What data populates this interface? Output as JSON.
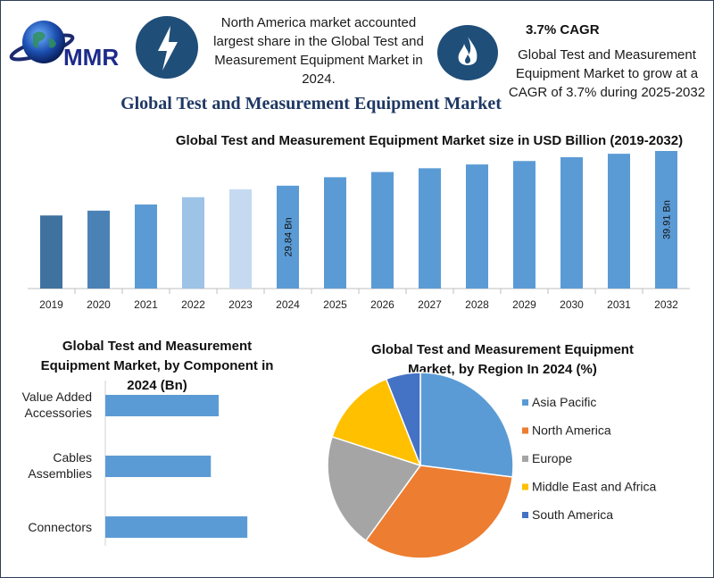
{
  "header": {
    "logo_text": "MMR",
    "info_left": "North America market accounted largest share in the Global Test and Measurement Equipment Market in 2024.",
    "info_right_heading": "3.7% CAGR",
    "info_right_text": "Global Test and Measurement Equipment Market to grow at a CAGR of 3.7% during 2025-2032",
    "title": "Global Test and Measurement Equipment Market"
  },
  "icons": {
    "left": "lightning-bolt-icon",
    "right": "flame-icon",
    "badge_color": "#1f4e79"
  },
  "chart_data": [
    {
      "type": "bar",
      "title": "Global Test and Measurement Equipment Market size in USD Billion (2019-2032)",
      "categories": [
        "2019",
        "2020",
        "2021",
        "2022",
        "2023",
        "2024",
        "2025",
        "2026",
        "2027",
        "2028",
        "2029",
        "2030",
        "2031",
        "2032"
      ],
      "values": [
        21.2,
        22.6,
        24.4,
        26.5,
        28.8,
        29.84,
        32.3,
        33.8,
        34.9,
        36.0,
        37.0,
        38.1,
        39.1,
        39.91
      ],
      "colors": [
        "#40729f",
        "#4a82b6",
        "#5b9bd5",
        "#9dc3e6",
        "#c5d9f1",
        "#5b9bd5",
        "#5b9bd5",
        "#5b9bd5",
        "#5b9bd5",
        "#5b9bd5",
        "#5b9bd5",
        "#5b9bd5",
        "#5b9bd5",
        "#5b9bd5"
      ],
      "data_labels": {
        "2024": "29.84 Bn",
        "2032": "39.91 Bn"
      }
    },
    {
      "type": "bar",
      "orientation": "horizontal",
      "title": "Global Test and Measurement Equipment Market, by Component in 2024 (Bn)",
      "categories": [
        "Value Added Accessories",
        "Cables Assemblies",
        "Connectors"
      ],
      "values": [
        8.7,
        8.1,
        10.9
      ],
      "color": "#5b9bd5"
    },
    {
      "type": "pie",
      "title": "Global Test and Measurement Equipment Market, by Region In 2024 (%)",
      "labels": [
        "Asia Pacific",
        "North America",
        "Europe",
        "Middle East and Africa",
        "South America"
      ],
      "values": [
        27,
        33,
        20,
        14,
        6
      ],
      "colors": [
        "#5b9bd5",
        "#ed7d31",
        "#a5a5a5",
        "#ffc000",
        "#4472c4"
      ]
    }
  ]
}
